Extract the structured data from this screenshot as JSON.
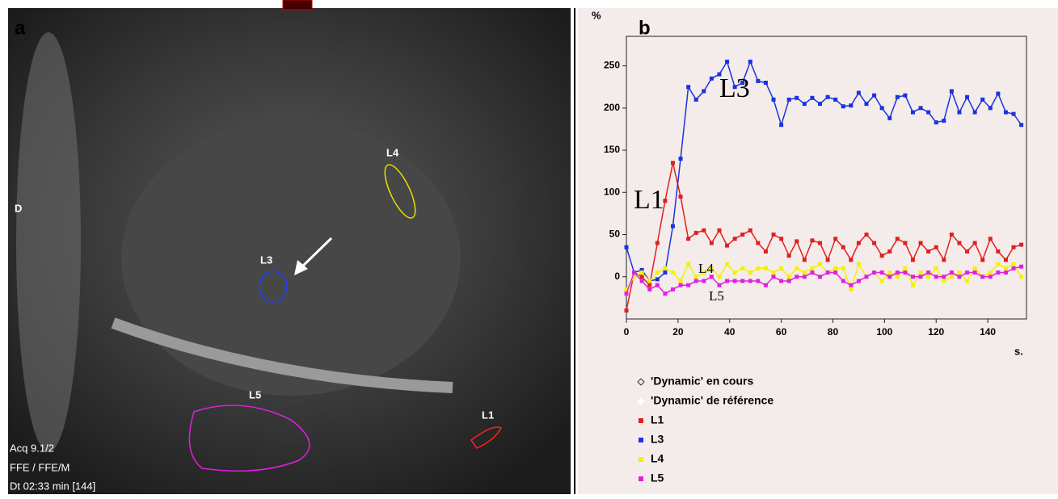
{
  "panel_a": {
    "label": "a",
    "side_marker": "D",
    "roi_labels": [
      "L4",
      "L3",
      "L5",
      "L1"
    ],
    "overlay": [
      "Acq 9.1/2",
      "FFE / FFE/M",
      "Dt 02:33 min [144]"
    ]
  },
  "chart_data": {
    "type": "line",
    "panel_label": "b",
    "y_label": "%",
    "x_label": "s.",
    "legend_extra": [
      "'Dynamic' en cours",
      "'Dynamic' de référence"
    ],
    "x": [
      0,
      3,
      6,
      9,
      12,
      15,
      18,
      21,
      24,
      27,
      30,
      33,
      36,
      39,
      42,
      45,
      48,
      51,
      54,
      57,
      60,
      63,
      66,
      69,
      72,
      75,
      78,
      81,
      84,
      87,
      90,
      93,
      96,
      99,
      102,
      105,
      108,
      111,
      114,
      117,
      120,
      123,
      126,
      129,
      132,
      135,
      138,
      141,
      144,
      147,
      150,
      153
    ],
    "series": [
      {
        "name": "L1",
        "color": "#e0201e",
        "values": [
          -40,
          5,
          0,
          -10,
          40,
          90,
          135,
          95,
          45,
          52,
          55,
          40,
          55,
          37,
          45,
          50,
          55,
          40,
          30,
          50,
          45,
          25,
          42,
          20,
          43,
          40,
          20,
          45,
          35,
          20,
          40,
          50,
          40,
          25,
          30,
          45,
          40,
          20,
          40,
          30,
          35,
          20,
          50,
          40,
          30,
          40,
          20,
          45,
          30,
          20,
          35,
          38
        ]
      },
      {
        "name": "L3",
        "color": "#1a33e0",
        "values": [
          35,
          5,
          8,
          -5,
          -3,
          5,
          60,
          140,
          225,
          210,
          220,
          235,
          240,
          255,
          225,
          230,
          255,
          232,
          230,
          210,
          180,
          210,
          212,
          205,
          212,
          205,
          213,
          210,
          202,
          203,
          218,
          205,
          215,
          200,
          188,
          213,
          215,
          195,
          200,
          195,
          183,
          185,
          220,
          195,
          213,
          195,
          210,
          200,
          217,
          195,
          193,
          180
        ]
      },
      {
        "name": "L4",
        "color": "#f2f200",
        "values": [
          -15,
          0,
          5,
          -5,
          5,
          10,
          5,
          -5,
          15,
          0,
          5,
          10,
          0,
          15,
          5,
          10,
          5,
          10,
          10,
          5,
          10,
          0,
          10,
          5,
          10,
          15,
          5,
          10,
          10,
          -15,
          15,
          0,
          5,
          -5,
          5,
          0,
          10,
          -10,
          5,
          0,
          10,
          -5,
          0,
          5,
          -5,
          10,
          0,
          5,
          15,
          10,
          15,
          0
        ]
      },
      {
        "name": "L5",
        "color": "#e020e0",
        "values": [
          -20,
          5,
          -5,
          -15,
          -10,
          -20,
          -15,
          -10,
          -10,
          -5,
          -5,
          0,
          -10,
          -5,
          -5,
          -5,
          -5,
          -5,
          -10,
          0,
          -5,
          -5,
          0,
          0,
          5,
          0,
          5,
          5,
          -5,
          -10,
          -5,
          0,
          5,
          5,
          0,
          5,
          5,
          0,
          0,
          5,
          0,
          0,
          5,
          0,
          5,
          5,
          0,
          0,
          5,
          5,
          10,
          12
        ]
      }
    ],
    "xlim": [
      0,
      155
    ],
    "ylim": [
      -50,
      285
    ],
    "xticks": [
      0,
      20,
      40,
      60,
      80,
      100,
      120,
      140
    ],
    "yticks": [
      0,
      50,
      100,
      150,
      200,
      250
    ]
  }
}
